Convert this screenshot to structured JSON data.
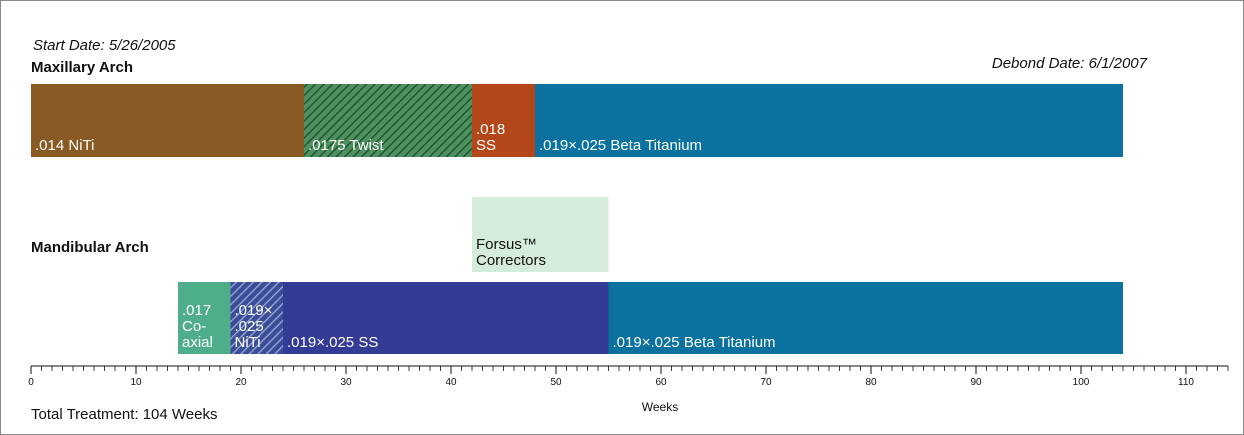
{
  "chart_data": {
    "type": "timeline",
    "start_date": "Start Date:  5/26/2005",
    "debond_date": "Debond Date:  6/1/2007",
    "total": "Total Treatment: 104 Weeks",
    "xlabel": "Weeks",
    "xlim": [
      0,
      114
    ],
    "xticks": [
      0,
      10,
      20,
      30,
      40,
      50,
      60,
      70,
      80,
      90,
      100,
      110
    ],
    "minor_xticks": [
      1,
      2,
      3,
      4,
      5,
      6,
      7,
      8,
      9,
      11,
      12,
      13,
      14,
      15,
      16,
      17,
      18,
      19,
      21,
      22,
      23,
      24,
      25,
      26,
      27,
      28,
      29,
      31,
      32,
      33,
      34,
      35,
      36,
      37,
      38,
      39,
      41,
      42,
      43,
      44,
      45,
      46,
      47,
      48,
      49,
      51,
      52,
      53,
      54,
      55,
      56,
      57,
      58,
      59,
      61,
      62,
      63,
      64,
      65,
      66,
      67,
      68,
      69,
      71,
      72,
      73,
      74,
      75,
      76,
      77,
      78,
      79,
      81,
      82,
      83,
      84,
      85,
      86,
      87,
      88,
      89,
      91,
      92,
      93,
      94,
      95,
      96,
      97,
      98,
      99,
      101,
      102,
      103,
      104,
      105,
      106,
      107,
      108,
      109,
      111,
      112,
      113,
      114
    ],
    "rows": [
      {
        "name": "Maxillary Arch",
        "segments": [
          {
            "lines": [
              ".014 NiTi"
            ],
            "start": 0,
            "end": 26,
            "color": "#8a5a24"
          },
          {
            "lines": [
              ".0175 Twist"
            ],
            "start": 26,
            "end": 42,
            "color": "#4d9160",
            "hatch_color": "#1d4a2a"
          },
          {
            "lines": [
              ".018",
              "SS"
            ],
            "start": 42,
            "end": 48,
            "color": "#b4471a"
          },
          {
            "lines": [
              ".019×.025 Beta Titanium"
            ],
            "start": 48,
            "end": 104,
            "color": "#0b72a0"
          }
        ]
      },
      {
        "name": "Mandibular Arch",
        "segments": [
          {
            "lines": [
              ".017",
              "Co-",
              "axial"
            ],
            "start": 14,
            "end": 19,
            "color": "#4fae8a"
          },
          {
            "lines": [
              ".019×",
              ".025",
              "NiTi"
            ],
            "start": 19,
            "end": 24,
            "color": "#3b4d98",
            "hatch_color": "#9eaed6"
          },
          {
            "lines": [
              ".019×.025 SS"
            ],
            "start": 24,
            "end": 55,
            "color": "#333b95"
          },
          {
            "lines": [
              ".019×.025 Beta Titanium"
            ],
            "start": 55,
            "end": 104,
            "color": "#0b72a0"
          }
        ],
        "overlays": [
          {
            "lines": [
              "Forsus™",
              "Correctors"
            ],
            "start": 42,
            "end": 55,
            "color": "#d5ecdb"
          }
        ]
      }
    ]
  }
}
